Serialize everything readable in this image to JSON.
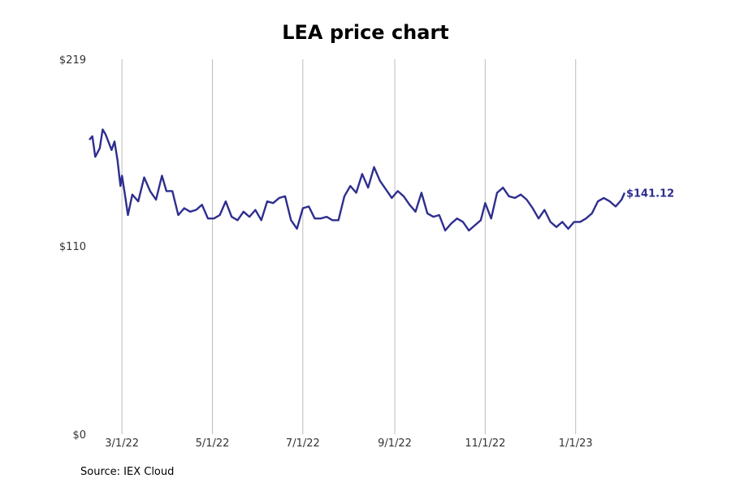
{
  "chart_data": {
    "type": "line",
    "title": "LEA price chart",
    "source": "Source: IEX Cloud",
    "ylim": [
      0,
      219
    ],
    "yticks": [
      {
        "value": 0,
        "label": "$0"
      },
      {
        "value": 110,
        "label": "$110"
      },
      {
        "value": 219,
        "label": "$219"
      }
    ],
    "xlim": [
      "2022-02-07",
      "2023-02-20"
    ],
    "xticks": [
      {
        "date": "2022-03-01",
        "label": "3/1/22"
      },
      {
        "date": "2022-05-01",
        "label": "5/1/22"
      },
      {
        "date": "2022-07-01",
        "label": "7/1/22"
      },
      {
        "date": "2022-09-01",
        "label": "9/1/22"
      },
      {
        "date": "2022-11-01",
        "label": "11/1/22"
      },
      {
        "date": "2023-01-01",
        "label": "1/1/23"
      }
    ],
    "grid": "vertical",
    "line_color": "#2e2e8f",
    "end_label": "$141.12",
    "series": [
      {
        "x": [
          "2022-02-07",
          "2022-02-09",
          "2022-02-11",
          "2022-02-14",
          "2022-02-16",
          "2022-02-18",
          "2022-02-22",
          "2022-02-24",
          "2022-02-26",
          "2022-02-28",
          "2022-03-01",
          "2022-03-03",
          "2022-03-05",
          "2022-03-08",
          "2022-03-12",
          "2022-03-16",
          "2022-03-20",
          "2022-03-24",
          "2022-03-28",
          "2022-03-31",
          "2022-04-04",
          "2022-04-08",
          "2022-04-12",
          "2022-04-16",
          "2022-04-20",
          "2022-04-24",
          "2022-04-28",
          "2022-05-02",
          "2022-05-06",
          "2022-05-10",
          "2022-05-14",
          "2022-05-18",
          "2022-05-22",
          "2022-05-26",
          "2022-05-30",
          "2022-06-03",
          "2022-06-07",
          "2022-06-11",
          "2022-06-15",
          "2022-06-19",
          "2022-06-23",
          "2022-06-27",
          "2022-07-01",
          "2022-07-05",
          "2022-07-09",
          "2022-07-13",
          "2022-07-17",
          "2022-07-21",
          "2022-07-25",
          "2022-07-29",
          "2022-08-02",
          "2022-08-06",
          "2022-08-10",
          "2022-08-14",
          "2022-08-18",
          "2022-08-22",
          "2022-08-26",
          "2022-08-30",
          "2022-09-03",
          "2022-09-07",
          "2022-09-11",
          "2022-09-15",
          "2022-09-19",
          "2022-09-23",
          "2022-09-27",
          "2022-10-01",
          "2022-10-05",
          "2022-10-09",
          "2022-10-13",
          "2022-10-17",
          "2022-10-21",
          "2022-10-25",
          "2022-10-29",
          "2022-11-01",
          "2022-11-05",
          "2022-11-09",
          "2022-11-13",
          "2022-11-17",
          "2022-11-21",
          "2022-11-25",
          "2022-11-29",
          "2022-12-03",
          "2022-12-07",
          "2022-12-11",
          "2022-12-15",
          "2022-12-19",
          "2022-12-23",
          "2022-12-27",
          "2022-12-31",
          "2023-01-04",
          "2023-01-08",
          "2023-01-12",
          "2023-01-16",
          "2023-01-20",
          "2023-01-24",
          "2023-01-28",
          "2023-02-01",
          "2023-02-03"
        ],
        "y": [
          172,
          174,
          162,
          167,
          178,
          175,
          166,
          171,
          160,
          145,
          151,
          140,
          128,
          140,
          136,
          150,
          142,
          137,
          151,
          142,
          142,
          128,
          132,
          130,
          131,
          134,
          126,
          126,
          128,
          136,
          127,
          125,
          130,
          127,
          131,
          125,
          136,
          135,
          138,
          139,
          125,
          120,
          132,
          133,
          126,
          126,
          127,
          125,
          125,
          139,
          145,
          141,
          152,
          144,
          156,
          148,
          143,
          138,
          142,
          139,
          134,
          130,
          141,
          129,
          127,
          128,
          119,
          123,
          126,
          124,
          119,
          122,
          125,
          135,
          126,
          141,
          144,
          139,
          138,
          140,
          137,
          132,
          126,
          131,
          124,
          121,
          124,
          120,
          124,
          124,
          126,
          129,
          136,
          138,
          136,
          133,
          137,
          141
        ]
      }
    ]
  }
}
